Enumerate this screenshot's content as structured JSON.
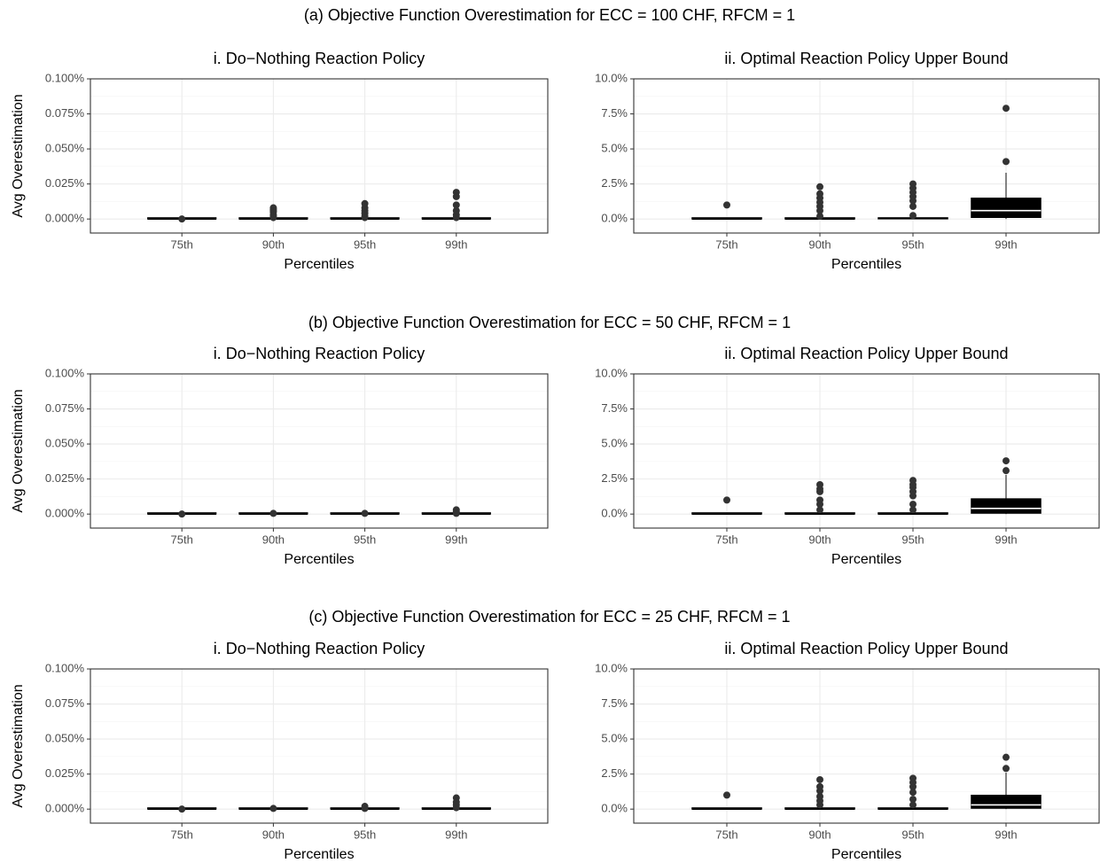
{
  "figure": {
    "xlabel": "Percentiles",
    "ylabel": "Avg Overestimation"
  },
  "chart_data": [
    {
      "row_title": "(a) Objective Function Overestimation for ECC = 100 CHF, RFCM = 1",
      "panels": [
        {
          "title": "i. Do−Nothing Reaction Policy",
          "type": "boxplot",
          "categories": [
            "75th",
            "90th",
            "95th",
            "99th"
          ],
          "yticks": [
            "0.000%",
            "0.025%",
            "0.050%",
            "0.075%",
            "0.100%"
          ],
          "ylim": [
            -0.01,
            0.1
          ],
          "boxes": [
            {
              "q1": 0,
              "median": 0,
              "q3": 0,
              "lower": 0,
              "upper": 0,
              "outliers": [
                0.0
              ]
            },
            {
              "q1": 0,
              "median": 0,
              "q3": 0,
              "lower": 0,
              "upper": 0,
              "outliers": [
                0.001,
                0.002,
                0.003,
                0.005,
                0.006,
                0.007,
                0.008
              ]
            },
            {
              "q1": 0,
              "median": 0,
              "q3": 0,
              "lower": 0,
              "upper": 0,
              "outliers": [
                0.001,
                0.002,
                0.004,
                0.006,
                0.008,
                0.011
              ]
            },
            {
              "q1": 0,
              "median": 0,
              "q3": 0,
              "lower": 0,
              "upper": 0,
              "outliers": [
                0.001,
                0.003,
                0.006,
                0.01,
                0.016,
                0.019
              ]
            }
          ]
        },
        {
          "title": "ii. Optimal Reaction Policy Upper Bound",
          "type": "boxplot",
          "categories": [
            "75th",
            "90th",
            "95th",
            "99th"
          ],
          "yticks": [
            "0.0%",
            "2.5%",
            "5.0%",
            "7.5%",
            "10.0%"
          ],
          "ylim": [
            -1.0,
            10.0
          ],
          "boxes": [
            {
              "q1": 0,
              "median": 0,
              "q3": 0,
              "lower": 0,
              "upper": 0,
              "outliers": [
                1.0
              ]
            },
            {
              "q1": 0,
              "median": 0,
              "q3": 0,
              "lower": 0,
              "upper": 0,
              "outliers": [
                0.2,
                0.6,
                0.9,
                1.2,
                1.5,
                1.8,
                2.3
              ]
            },
            {
              "q1": 0,
              "median": 0.05,
              "q3": 0.1,
              "lower": 0,
              "upper": 0.2,
              "outliers": [
                0.25,
                0.9,
                1.3,
                1.6,
                1.9,
                2.2,
                2.5
              ]
            },
            {
              "q1": 0.1,
              "median": 0.6,
              "q3": 1.5,
              "lower": 0,
              "upper": 3.3,
              "outliers": [
                4.1,
                7.9
              ]
            }
          ]
        }
      ]
    },
    {
      "row_title": "(b) Objective Function Overestimation for ECC = 50 CHF, RFCM = 1",
      "panels": [
        {
          "title": "i. Do−Nothing Reaction Policy",
          "type": "boxplot",
          "categories": [
            "75th",
            "90th",
            "95th",
            "99th"
          ],
          "yticks": [
            "0.000%",
            "0.025%",
            "0.050%",
            "0.075%",
            "0.100%"
          ],
          "ylim": [
            -0.01,
            0.1
          ],
          "boxes": [
            {
              "q1": 0,
              "median": 0,
              "q3": 0,
              "lower": 0,
              "upper": 0,
              "outliers": [
                0.0
              ]
            },
            {
              "q1": 0,
              "median": 0,
              "q3": 0,
              "lower": 0,
              "upper": 0,
              "outliers": [
                0.0005
              ]
            },
            {
              "q1": 0,
              "median": 0,
              "q3": 0,
              "lower": 0,
              "upper": 0,
              "outliers": [
                0.0005
              ]
            },
            {
              "q1": 0,
              "median": 0,
              "q3": 0,
              "lower": 0,
              "upper": 0,
              "outliers": [
                0.0005,
                0.0015,
                0.003
              ]
            }
          ]
        },
        {
          "title": "ii. Optimal Reaction Policy Upper Bound",
          "type": "boxplot",
          "categories": [
            "75th",
            "90th",
            "95th",
            "99th"
          ],
          "yticks": [
            "0.0%",
            "2.5%",
            "5.0%",
            "7.5%",
            "10.0%"
          ],
          "ylim": [
            -1.0,
            10.0
          ],
          "boxes": [
            {
              "q1": 0,
              "median": 0,
              "q3": 0,
              "lower": 0,
              "upper": 0,
              "outliers": [
                1.0
              ]
            },
            {
              "q1": 0,
              "median": 0,
              "q3": 0,
              "lower": 0,
              "upper": 0,
              "outliers": [
                0.3,
                0.7,
                1.0,
                1.6,
                1.8,
                2.1
              ]
            },
            {
              "q1": 0,
              "median": 0,
              "q3": 0,
              "lower": 0,
              "upper": 0,
              "outliers": [
                0.3,
                0.7,
                1.3,
                1.6,
                1.9,
                2.1,
                2.4
              ]
            },
            {
              "q1": 0.05,
              "median": 0.4,
              "q3": 1.1,
              "lower": 0,
              "upper": 2.8,
              "outliers": [
                3.1,
                3.8
              ]
            }
          ]
        }
      ]
    },
    {
      "row_title": "(c) Objective Function Overestimation for ECC = 25 CHF, RFCM = 1",
      "panels": [
        {
          "title": "i. Do−Nothing Reaction Policy",
          "type": "boxplot",
          "categories": [
            "75th",
            "90th",
            "95th",
            "99th"
          ],
          "yticks": [
            "0.000%",
            "0.025%",
            "0.050%",
            "0.075%",
            "0.100%"
          ],
          "ylim": [
            -0.01,
            0.1
          ],
          "boxes": [
            {
              "q1": 0,
              "median": 0,
              "q3": 0,
              "lower": 0,
              "upper": 0,
              "outliers": [
                0.0
              ]
            },
            {
              "q1": 0,
              "median": 0,
              "q3": 0,
              "lower": 0,
              "upper": 0,
              "outliers": [
                0.0005
              ]
            },
            {
              "q1": 0,
              "median": 0,
              "q3": 0,
              "lower": 0,
              "upper": 0,
              "outliers": [
                0.0005,
                0.002
              ]
            },
            {
              "q1": 0,
              "median": 0,
              "q3": 0,
              "lower": 0,
              "upper": 0,
              "outliers": [
                0.001,
                0.003,
                0.005,
                0.008
              ]
            }
          ]
        },
        {
          "title": "ii. Optimal Reaction Policy Upper Bound",
          "type": "boxplot",
          "categories": [
            "75th",
            "90th",
            "95th",
            "99th"
          ],
          "yticks": [
            "0.0%",
            "2.5%",
            "5.0%",
            "7.5%",
            "10.0%"
          ],
          "ylim": [
            -1.0,
            10.0
          ],
          "boxes": [
            {
              "q1": 0,
              "median": 0,
              "q3": 0,
              "lower": 0,
              "upper": 0,
              "outliers": [
                1.0
              ]
            },
            {
              "q1": 0,
              "median": 0,
              "q3": 0,
              "lower": 0,
              "upper": 0,
              "outliers": [
                0.3,
                0.6,
                0.9,
                1.3,
                1.6,
                2.1
              ]
            },
            {
              "q1": 0,
              "median": 0,
              "q3": 0,
              "lower": 0,
              "upper": 0,
              "outliers": [
                0.3,
                0.7,
                1.2,
                1.6,
                1.9,
                2.2
              ]
            },
            {
              "q1": 0.05,
              "median": 0.3,
              "q3": 1.0,
              "lower": 0,
              "upper": 2.6,
              "outliers": [
                2.9,
                3.7
              ]
            }
          ]
        }
      ]
    }
  ]
}
